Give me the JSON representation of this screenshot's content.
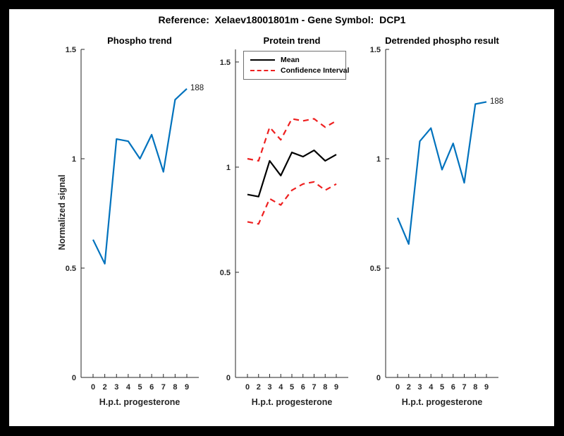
{
  "figure": {
    "title": "Reference:  Xelaev18001801m - Gene Symbol:  DCP1",
    "background_color": "#ffffff",
    "frame_color": "#000000",
    "accent_blue": "#0072bd",
    "accent_red": "#ee2020",
    "axis_color": "#262626"
  },
  "chart_data": [
    {
      "type": "line",
      "title": "Phospho trend",
      "xlabel": "H.p.t. progesterone",
      "ylabel": "Normalized signal",
      "x_tick_labels": [
        "0",
        "2",
        "3",
        "4",
        "5",
        "6",
        "7",
        "8",
        "9"
      ],
      "x_values": [
        0,
        2,
        3,
        4,
        5,
        6,
        7,
        8,
        9
      ],
      "y_tick_labels": [
        "0",
        "0.5",
        "1",
        "1.5"
      ],
      "ylim": [
        0,
        1.5
      ],
      "grid": false,
      "series": [
        {
          "name": "Phospho trend",
          "color": "#0072bd",
          "style": "solid",
          "values": [
            0.63,
            0.52,
            1.09,
            1.08,
            1.0,
            1.11,
            0.94,
            1.27,
            1.32
          ],
          "end_label": "188"
        }
      ]
    },
    {
      "type": "line",
      "title": "Protein trend",
      "xlabel": "H.p.t. progesterone",
      "ylabel": "",
      "x_tick_labels": [
        "0",
        "2",
        "3",
        "4",
        "5",
        "6",
        "7",
        "8",
        "9"
      ],
      "x_values": [
        0,
        2,
        3,
        4,
        5,
        6,
        7,
        8,
        9
      ],
      "y_tick_labels": [
        "0",
        "0.5",
        "1",
        "1.5"
      ],
      "ylim": [
        0,
        1.56
      ],
      "grid": false,
      "legend": {
        "position": "top-inside",
        "entries": [
          {
            "label": "Mean",
            "color": "#000000",
            "style": "solid"
          },
          {
            "label": "Confidence Interval",
            "color": "#ee2020",
            "style": "dashed"
          }
        ]
      },
      "series": [
        {
          "name": "Mean",
          "color": "#000000",
          "style": "solid",
          "values": [
            0.87,
            0.86,
            1.03,
            0.96,
            1.07,
            1.05,
            1.08,
            1.03,
            1.06
          ]
        },
        {
          "name": "Confidence Interval upper",
          "color": "#ee2020",
          "style": "dashed",
          "values": [
            1.04,
            1.03,
            1.19,
            1.13,
            1.23,
            1.22,
            1.23,
            1.19,
            1.22
          ]
        },
        {
          "name": "Confidence Interval lower",
          "color": "#ee2020",
          "style": "dashed",
          "values": [
            0.74,
            0.73,
            0.85,
            0.82,
            0.89,
            0.92,
            0.93,
            0.89,
            0.92
          ]
        }
      ]
    },
    {
      "type": "line",
      "title": "Detrended phospho result",
      "xlabel": "H.p.t. progesterone",
      "ylabel": "",
      "x_tick_labels": [
        "0",
        "2",
        "3",
        "4",
        "5",
        "6",
        "7",
        "8",
        "9"
      ],
      "x_values": [
        0,
        2,
        3,
        4,
        5,
        6,
        7,
        8,
        9
      ],
      "y_tick_labels": [
        "0",
        "0.5",
        "1",
        "1.5"
      ],
      "ylim": [
        0,
        1.5
      ],
      "grid": false,
      "series": [
        {
          "name": "Detrended phospho",
          "color": "#0072bd",
          "style": "solid",
          "values": [
            0.73,
            0.61,
            1.08,
            1.14,
            0.95,
            1.07,
            0.89,
            1.25,
            1.26
          ],
          "end_label": "188"
        }
      ]
    }
  ]
}
